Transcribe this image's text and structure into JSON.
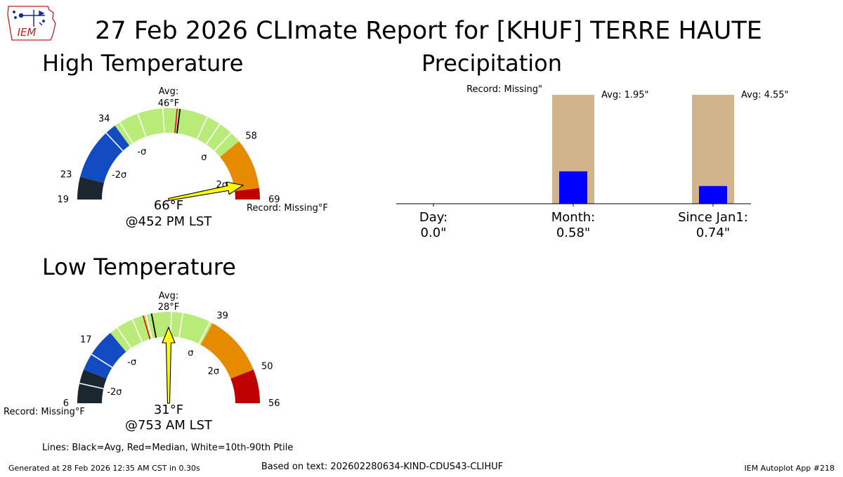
{
  "title": "27 Feb 2026 CLImate Report for [KHUF] TERRE HAUTE",
  "logo": {
    "text": "IEM",
    "icon": "iowa-state-outline-icon"
  },
  "legend_note": "Lines: Black=Avg, Red=Median, White=10th-90th Ptile",
  "footer": {
    "generated": "Generated at 28 Feb 2026 12:35 AM CST in 0.30s",
    "source": "Based on text: 202602280634-KIND-CDUS43-CLIHUF",
    "app": "IEM Autoplot App #218"
  },
  "chart_data": [
    {
      "type": "gauge",
      "title": "High Temperature",
      "range": [
        19,
        69
      ],
      "avg_label": "Avg:",
      "avg_value_label": "46°F",
      "avg": 46,
      "median": 45.5,
      "value": 66,
      "value_label": "66°F",
      "time_label": "@452 PM LST",
      "record_label": "Record: Missing°F",
      "ticks": [
        {
          "value": 19,
          "label": "19"
        },
        {
          "value": 23,
          "label": "23"
        },
        {
          "value": 34,
          "label": "34"
        },
        {
          "value": 58,
          "label": "58"
        },
        {
          "value": 69,
          "label": "69"
        }
      ],
      "sigma_labels": [
        {
          "value": 26.5,
          "label": "-2σ"
        },
        {
          "value": 36,
          "label": "-σ"
        },
        {
          "value": 55,
          "label": "σ"
        },
        {
          "value": 64.5,
          "label": "2σ"
        }
      ],
      "bands": [
        {
          "from": 19,
          "to": 23,
          "color": "#1c262e"
        },
        {
          "from": 23,
          "to": 34,
          "color": "#124bc2"
        },
        {
          "from": 34,
          "to": 58,
          "color": "#b8eb78"
        },
        {
          "from": 58,
          "to": 67,
          "color": "#e68a00"
        },
        {
          "from": 67,
          "to": 69,
          "color": "#bf0000"
        }
      ],
      "percentile_lines": [
        32,
        35,
        38.5,
        43,
        51,
        53.5,
        56
      ]
    },
    {
      "type": "gauge",
      "title": "Low Temperature",
      "range": [
        6,
        56
      ],
      "avg_label": "Avg:",
      "avg_value_label": "28°F",
      "avg": 28,
      "median": 26.5,
      "value": 31,
      "value_label": "31°F",
      "time_label": "@753 AM LST",
      "record_label": "Record: Missing°F",
      "ticks": [
        {
          "value": 6,
          "label": "6"
        },
        {
          "value": 17,
          "label": "17"
        },
        {
          "value": 39,
          "label": "39"
        },
        {
          "value": 50,
          "label": "50"
        },
        {
          "value": 56,
          "label": "56"
        }
      ],
      "sigma_labels": [
        {
          "value": 9.5,
          "label": "-2σ"
        },
        {
          "value": 19.5,
          "label": "-σ"
        },
        {
          "value": 37.5,
          "label": "σ"
        },
        {
          "value": 46,
          "label": "2σ"
        }
      ],
      "bands": [
        {
          "from": 6,
          "to": 12,
          "color": "#1c262e"
        },
        {
          "from": 12,
          "to": 20,
          "color": "#124bc2"
        },
        {
          "from": 20,
          "to": 39,
          "color": "#b8eb78"
        },
        {
          "from": 39,
          "to": 50,
          "color": "#e68a00"
        },
        {
          "from": 50,
          "to": 56,
          "color": "#bf0000"
        }
      ],
      "percentile_lines": [
        9.5,
        15,
        21.5,
        24.5,
        27,
        31.5,
        33.5,
        38.5
      ]
    },
    {
      "type": "bar",
      "title": "Precipitation",
      "categories": [
        {
          "label": "Day:",
          "value_label": "0.0\""
        },
        {
          "label": "Month:",
          "value_label": "0.58\""
        },
        {
          "label": "Since Jan1:",
          "value_label": "0.74\""
        }
      ],
      "observed": [
        0.0,
        0.58,
        0.74
      ],
      "averages": [
        null,
        1.95,
        4.55
      ],
      "avg_labels": [
        "",
        "Avg: 1.95\"",
        "Avg: 4.55\""
      ],
      "record_label": "Record: Missing\"",
      "colors": {
        "observed": "#0000ff",
        "average": "#d2b48c"
      }
    }
  ]
}
